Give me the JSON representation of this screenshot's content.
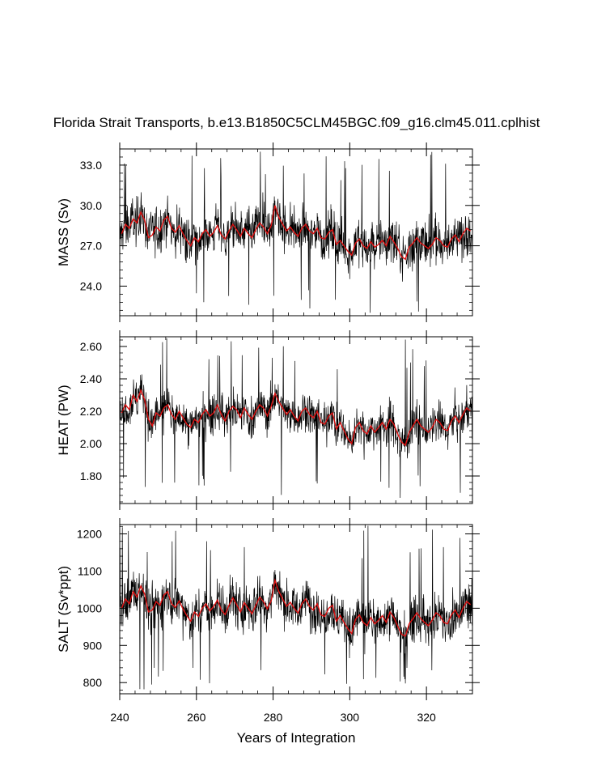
{
  "figure": {
    "title": "Florida Strait Transports, b.e13.B1850C5CLM45BGC.f09_g16.clm45.011.cplhist",
    "xlabel": "Years of Integration"
  },
  "chart_data": [
    {
      "type": "line",
      "ylabel": "MASS (Sv)",
      "xlim": [
        240,
        332
      ],
      "ylim": [
        21.8,
        34.2
      ],
      "xticks": [
        240,
        260,
        280,
        300,
        320
      ],
      "yticks": [
        24.0,
        27.0,
        30.0,
        33.0
      ],
      "ytick_labels": [
        "24.0",
        "27.0",
        "30.0",
        "33.0"
      ],
      "yminor_step": 0.6,
      "series": [
        {
          "kind": "monthly",
          "color": "#000000",
          "mean": 27.8,
          "amplitude": 1.25,
          "spike_up": 34.1,
          "spike_down": 21.9
        },
        {
          "kind": "annual-mean",
          "color": "#e01010",
          "x": [
            240.5,
            241.5,
            242.5,
            243.5,
            244.5,
            245.5,
            246.5,
            247.5,
            248.5,
            249.5,
            250.5,
            251.5,
            252.5,
            253.5,
            254.5,
            255.5,
            256.5,
            257.5,
            258.5,
            259.5,
            260.5,
            261.5,
            262.5,
            263.5,
            264.5,
            265.5,
            266.5,
            267.5,
            268.5,
            269.5,
            270.5,
            271.5,
            272.5,
            273.5,
            274.5,
            275.5,
            276.5,
            277.5,
            278.5,
            279.5,
            280.5,
            281.5,
            282.5,
            283.5,
            284.5,
            285.5,
            286.5,
            287.5,
            288.5,
            289.5,
            290.5,
            291.5,
            292.5,
            293.5,
            294.5,
            295.5,
            296.5,
            297.5,
            298.5,
            299.5,
            300.5,
            301.5,
            302.5,
            303.5,
            304.5,
            305.5,
            306.5,
            307.5,
            308.5,
            309.5,
            310.5,
            311.5,
            312.5,
            313.5,
            314.5,
            315.5,
            316.5,
            317.5,
            318.5,
            319.5,
            320.5,
            321.5,
            322.5,
            323.5,
            324.5,
            325.5,
            326.5,
            327.5,
            328.5,
            329.5,
            330.5,
            331.5
          ],
          "y": [
            27.9,
            28.6,
            28.3,
            29.0,
            28.7,
            29.5,
            28.9,
            27.6,
            27.8,
            28.4,
            28.1,
            28.9,
            29.2,
            28.3,
            28.0,
            28.5,
            27.9,
            27.4,
            27.0,
            27.6,
            27.3,
            27.9,
            28.2,
            27.7,
            28.0,
            28.5,
            27.8,
            27.5,
            28.1,
            28.6,
            28.2,
            27.7,
            28.3,
            27.9,
            27.6,
            28.2,
            28.7,
            28.4,
            27.9,
            28.5,
            30.0,
            29.1,
            28.6,
            28.1,
            28.4,
            28.0,
            27.7,
            28.3,
            28.6,
            28.1,
            27.9,
            28.3,
            27.6,
            27.5,
            28.0,
            28.2,
            27.1,
            27.4,
            27.0,
            26.6,
            26.3,
            27.2,
            27.5,
            27.0,
            26.8,
            27.3,
            26.9,
            27.1,
            27.4,
            27.0,
            27.7,
            27.3,
            26.8,
            26.2,
            26.0,
            26.9,
            27.2,
            27.6,
            27.2,
            27.0,
            26.8,
            27.1,
            27.6,
            27.4,
            27.0,
            26.9,
            27.5,
            27.8,
            27.3,
            27.9,
            28.3,
            28.1
          ]
        }
      ]
    },
    {
      "type": "line",
      "ylabel": "HEAT (PW)",
      "xlim": [
        240,
        332
      ],
      "ylim": [
        1.63,
        2.66
      ],
      "xticks": [
        240,
        260,
        280,
        300,
        320
      ],
      "yticks": [
        1.8,
        2.0,
        2.2,
        2.4,
        2.6
      ],
      "ytick_labels": [
        "1.80",
        "2.00",
        "2.20",
        "2.40",
        "2.60"
      ],
      "yminor_step": 0.04,
      "series": [
        {
          "kind": "monthly",
          "color": "#000000",
          "mean": 2.18,
          "amplitude": 0.09,
          "spike_up": 2.65,
          "spike_down": 1.65
        },
        {
          "kind": "annual-mean",
          "color": "#e01010",
          "x": [
            240.5,
            241.5,
            242.5,
            243.5,
            244.5,
            245.5,
            246.5,
            247.5,
            248.5,
            249.5,
            250.5,
            251.5,
            252.5,
            253.5,
            254.5,
            255.5,
            256.5,
            257.5,
            258.5,
            259.5,
            260.5,
            261.5,
            262.5,
            263.5,
            264.5,
            265.5,
            266.5,
            267.5,
            268.5,
            269.5,
            270.5,
            271.5,
            272.5,
            273.5,
            274.5,
            275.5,
            276.5,
            277.5,
            278.5,
            279.5,
            280.5,
            281.5,
            282.5,
            283.5,
            284.5,
            285.5,
            286.5,
            287.5,
            288.5,
            289.5,
            290.5,
            291.5,
            292.5,
            293.5,
            294.5,
            295.5,
            296.5,
            297.5,
            298.5,
            299.5,
            300.5,
            301.5,
            302.5,
            303.5,
            304.5,
            305.5,
            306.5,
            307.5,
            308.5,
            309.5,
            310.5,
            311.5,
            312.5,
            313.5,
            314.5,
            315.5,
            316.5,
            317.5,
            318.5,
            319.5,
            320.5,
            321.5,
            322.5,
            323.5,
            324.5,
            325.5,
            326.5,
            327.5,
            328.5,
            329.5,
            330.5,
            331.5
          ],
          "y": [
            2.19,
            2.24,
            2.21,
            2.3,
            2.26,
            2.33,
            2.27,
            2.15,
            2.11,
            2.19,
            2.17,
            2.22,
            2.24,
            2.18,
            2.15,
            2.2,
            2.16,
            2.12,
            2.1,
            2.15,
            2.13,
            2.18,
            2.21,
            2.17,
            2.19,
            2.24,
            2.18,
            2.14,
            2.2,
            2.23,
            2.21,
            2.16,
            2.22,
            2.18,
            2.15,
            2.2,
            2.24,
            2.22,
            2.17,
            2.23,
            2.31,
            2.26,
            2.22,
            2.18,
            2.21,
            2.17,
            2.14,
            2.2,
            2.22,
            2.18,
            2.16,
            2.2,
            2.13,
            2.12,
            2.17,
            2.19,
            2.09,
            2.13,
            2.08,
            2.03,
            2.0,
            2.1,
            2.13,
            2.08,
            2.06,
            2.11,
            2.07,
            2.1,
            2.13,
            2.09,
            2.15,
            2.12,
            2.06,
            2.01,
            1.99,
            2.07,
            2.11,
            2.15,
            2.11,
            2.09,
            2.07,
            2.1,
            2.15,
            2.13,
            2.09,
            2.08,
            2.14,
            2.17,
            2.13,
            2.18,
            2.22,
            2.2
          ]
        }
      ]
    },
    {
      "type": "line",
      "ylabel": "SALT (Sv*ppt)",
      "xlim": [
        240,
        332
      ],
      "ylim": [
        770,
        1225
      ],
      "xticks": [
        240,
        260,
        280,
        300,
        320
      ],
      "xtick_labels": [
        "240",
        "260",
        "280",
        "300",
        "320"
      ],
      "yticks": [
        800,
        900,
        1000,
        1100,
        1200
      ],
      "ytick_labels": [
        "800",
        "900",
        "1000",
        "1100",
        "1200"
      ],
      "yminor_step": 20,
      "series": [
        {
          "kind": "monthly",
          "color": "#000000",
          "mean": 995,
          "amplitude": 45,
          "spike_up": 1222,
          "spike_down": 772
        },
        {
          "kind": "annual-mean",
          "color": "#e01010",
          "x": [
            240.5,
            241.5,
            242.5,
            243.5,
            244.5,
            245.5,
            246.5,
            247.5,
            248.5,
            249.5,
            250.5,
            251.5,
            252.5,
            253.5,
            254.5,
            255.5,
            256.5,
            257.5,
            258.5,
            259.5,
            260.5,
            261.5,
            262.5,
            263.5,
            264.5,
            265.5,
            266.5,
            267.5,
            268.5,
            269.5,
            270.5,
            271.5,
            272.5,
            273.5,
            274.5,
            275.5,
            276.5,
            277.5,
            278.5,
            279.5,
            280.5,
            281.5,
            282.5,
            283.5,
            284.5,
            285.5,
            286.5,
            287.5,
            288.5,
            289.5,
            290.5,
            291.5,
            292.5,
            293.5,
            294.5,
            295.5,
            296.5,
            297.5,
            298.5,
            299.5,
            300.5,
            301.5,
            302.5,
            303.5,
            304.5,
            305.5,
            306.5,
            307.5,
            308.5,
            309.5,
            310.5,
            311.5,
            312.5,
            313.5,
            314.5,
            315.5,
            316.5,
            317.5,
            318.5,
            319.5,
            320.5,
            321.5,
            322.5,
            323.5,
            324.5,
            325.5,
            326.5,
            327.5,
            328.5,
            329.5,
            330.5,
            331.5
          ],
          "y": [
            1000,
            1025,
            1012,
            1045,
            1030,
            1060,
            1038,
            990,
            995,
            1018,
            1008,
            1035,
            1045,
            1012,
            1002,
            1020,
            998,
            980,
            965,
            990,
            978,
            1000,
            1012,
            993,
            1005,
            1022,
            995,
            983,
            1008,
            1028,
            1010,
            990,
            1015,
            1000,
            985,
            1008,
            1030,
            1018,
            998,
            1020,
            1075,
            1045,
            1025,
            1005,
            1016,
            1000,
            987,
            1012,
            1025,
            1005,
            995,
            1012,
            982,
            978,
            1000,
            1008,
            965,
            980,
            962,
            945,
            932,
            970,
            982,
            962,
            953,
            975,
            958,
            968,
            980,
            962,
            990,
            975,
            952,
            930,
            925,
            958,
            972,
            988,
            972,
            962,
            953,
            968,
            988,
            980,
            962,
            958,
            982,
            995,
            975,
            1000,
            1018,
            1010
          ]
        }
      ]
    }
  ]
}
